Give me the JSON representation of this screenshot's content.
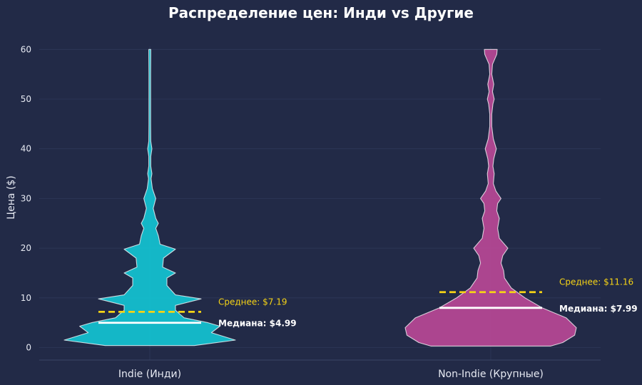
{
  "chart_data": {
    "type": "violin",
    "title": "Распределение цен: Инди vs Другие",
    "ylabel": "Цена ($)",
    "xlabel": "",
    "ylim": [
      -2.5,
      62
    ],
    "yticks": [
      0,
      10,
      20,
      30,
      40,
      50,
      60
    ],
    "grid": true,
    "legend": "none",
    "categories": [
      "Indie (Инди)",
      "Non-Indie (Крупные)"
    ],
    "series": [
      {
        "name": "Indie (Инди)",
        "color": "#14c3d3",
        "mean": 7.19,
        "median": 4.99,
        "mean_label": "Среднее: $7.19",
        "median_label": "Медиана: $4.99",
        "density_profile": [
          [
            0.4,
            0.52
          ],
          [
            1.5,
            1.0
          ],
          [
            3.0,
            0.72
          ],
          [
            4.3,
            0.82
          ],
          [
            5.0,
            0.68
          ],
          [
            6.0,
            0.4
          ],
          [
            7.5,
            0.3
          ],
          [
            8.5,
            0.3
          ],
          [
            9.8,
            0.6
          ],
          [
            10.6,
            0.3
          ],
          [
            12.5,
            0.2
          ],
          [
            14.0,
            0.2
          ],
          [
            15.0,
            0.3
          ],
          [
            16.2,
            0.15
          ],
          [
            18.0,
            0.16
          ],
          [
            19.8,
            0.3
          ],
          [
            20.8,
            0.12
          ],
          [
            22.5,
            0.1
          ],
          [
            24.0,
            0.07
          ],
          [
            25.0,
            0.1
          ],
          [
            26.0,
            0.07
          ],
          [
            28.0,
            0.04
          ],
          [
            30.0,
            0.07
          ],
          [
            32.0,
            0.03
          ],
          [
            34.0,
            0.015
          ],
          [
            35.0,
            0.025
          ],
          [
            36.5,
            0.012
          ],
          [
            38.5,
            0.012
          ],
          [
            40.0,
            0.025
          ],
          [
            41.5,
            0.012
          ],
          [
            45.0,
            0.01
          ],
          [
            50.0,
            0.01
          ],
          [
            55.0,
            0.01
          ],
          [
            59.0,
            0.012
          ],
          [
            60.0,
            0.012
          ]
        ]
      },
      {
        "name": "Non-Indie (Крупные)",
        "color": "#b84896",
        "mean": 11.16,
        "median": 7.99,
        "mean_label": "Среднее: $11.16",
        "median_label": "Медиана: $7.99",
        "density_profile": [
          [
            0.3,
            0.7
          ],
          [
            1.0,
            0.84
          ],
          [
            2.5,
            0.98
          ],
          [
            4.0,
            1.0
          ],
          [
            6.0,
            0.88
          ],
          [
            8.0,
            0.6
          ],
          [
            10.0,
            0.4
          ],
          [
            12.0,
            0.24
          ],
          [
            14.0,
            0.16
          ],
          [
            15.5,
            0.15
          ],
          [
            17.0,
            0.12
          ],
          [
            18.5,
            0.14
          ],
          [
            20.0,
            0.2
          ],
          [
            22.0,
            0.1
          ],
          [
            24.0,
            0.08
          ],
          [
            26.0,
            0.1
          ],
          [
            27.5,
            0.07
          ],
          [
            29.0,
            0.08
          ],
          [
            30.0,
            0.12
          ],
          [
            31.5,
            0.06
          ],
          [
            33.0,
            0.03
          ],
          [
            35.0,
            0.04
          ],
          [
            36.5,
            0.025
          ],
          [
            38.0,
            0.035
          ],
          [
            40.0,
            0.065
          ],
          [
            42.0,
            0.03
          ],
          [
            44.5,
            0.012
          ],
          [
            47.0,
            0.012
          ],
          [
            49.0,
            0.025
          ],
          [
            50.0,
            0.04
          ],
          [
            51.5,
            0.02
          ],
          [
            53.0,
            0.035
          ],
          [
            55.0,
            0.012
          ],
          [
            57.0,
            0.02
          ],
          [
            59.0,
            0.07
          ],
          [
            60.0,
            0.075
          ]
        ]
      }
    ],
    "mean_line_color": "#f5d315",
    "median_line_color": "#ffffff"
  }
}
